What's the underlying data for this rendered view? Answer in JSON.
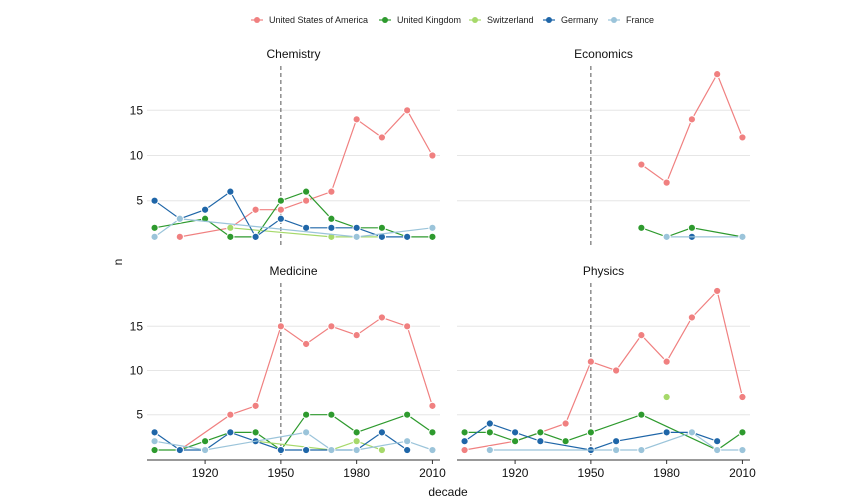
{
  "chart_data": {
    "type": "line",
    "xlabel": "decade",
    "ylabel": "n",
    "x_ticks": [
      1920,
      1950,
      1980,
      2010
    ],
    "y_ticks": [
      5,
      10,
      15
    ],
    "xlim": [
      1897,
      2013
    ],
    "ylim": [
      0.1,
      19.9
    ],
    "reference_line_x": 1950,
    "grid": "horizontal",
    "legend_position": "top",
    "series_colors": {
      "United States of America": "#F08080",
      "United Kingdom": "#2E9A2E",
      "Switzerland": "#A6D96A",
      "Germany": "#1F66A8",
      "France": "#9BC4DA"
    },
    "legend": [
      "United States of America",
      "United Kingdom",
      "Switzerland",
      "Germany",
      "France"
    ],
    "facets": [
      {
        "title": "Chemistry",
        "series": [
          {
            "name": "United States of America",
            "points": [
              [
                1910,
                1
              ],
              [
                1930,
                2
              ],
              [
                1940,
                4
              ],
              [
                1950,
                4
              ],
              [
                1960,
                5
              ],
              [
                1970,
                6
              ],
              [
                1980,
                14
              ],
              [
                1990,
                12
              ],
              [
                2000,
                15
              ],
              [
                2010,
                10
              ]
            ]
          },
          {
            "name": "United Kingdom",
            "points": [
              [
                1900,
                2
              ],
              [
                1920,
                3
              ],
              [
                1930,
                1
              ],
              [
                1940,
                1
              ],
              [
                1950,
                5
              ],
              [
                1960,
                6
              ],
              [
                1970,
                3
              ],
              [
                1980,
                2
              ],
              [
                1990,
                2
              ],
              [
                2000,
                1
              ],
              [
                2010,
                1
              ]
            ]
          },
          {
            "name": "Switzerland",
            "points": [
              [
                1930,
                2
              ],
              [
                1970,
                1
              ],
              [
                1990,
                1
              ]
            ]
          },
          {
            "name": "Germany",
            "points": [
              [
                1900,
                5
              ],
              [
                1910,
                3
              ],
              [
                1920,
                4
              ],
              [
                1930,
                6
              ],
              [
                1940,
                1
              ],
              [
                1950,
                3
              ],
              [
                1960,
                2
              ],
              [
                1970,
                2
              ],
              [
                1980,
                2
              ],
              [
                1990,
                1
              ],
              [
                2000,
                1
              ]
            ]
          },
          {
            "name": "France",
            "points": [
              [
                1900,
                1
              ],
              [
                1910,
                3
              ],
              [
                1980,
                1
              ],
              [
                2010,
                2
              ]
            ]
          }
        ]
      },
      {
        "title": "Economics",
        "series": [
          {
            "name": "United States of America",
            "points": [
              [
                1970,
                9
              ],
              [
                1980,
                7
              ],
              [
                1990,
                14
              ],
              [
                2000,
                19
              ],
              [
                2010,
                12
              ]
            ]
          },
          {
            "name": "United Kingdom",
            "points": [
              [
                1970,
                2
              ],
              [
                1980,
                1
              ],
              [
                1990,
                2
              ],
              [
                2010,
                1
              ]
            ]
          },
          {
            "name": "Germany",
            "points": [
              [
                1990,
                1
              ]
            ]
          },
          {
            "name": "France",
            "points": [
              [
                1980,
                1
              ],
              [
                2010,
                1
              ]
            ]
          }
        ]
      },
      {
        "title": "Medicine",
        "series": [
          {
            "name": "United States of America",
            "points": [
              [
                1910,
                1
              ],
              [
                1930,
                5
              ],
              [
                1940,
                6
              ],
              [
                1950,
                15
              ],
              [
                1960,
                13
              ],
              [
                1970,
                15
              ],
              [
                1980,
                14
              ],
              [
                1990,
                16
              ],
              [
                2000,
                15
              ],
              [
                2010,
                6
              ]
            ]
          },
          {
            "name": "United Kingdom",
            "points": [
              [
                1900,
                1
              ],
              [
                1910,
                1
              ],
              [
                1920,
                2
              ],
              [
                1930,
                3
              ],
              [
                1940,
                3
              ],
              [
                1950,
                1
              ],
              [
                1960,
                5
              ],
              [
                1970,
                5
              ],
              [
                1980,
                3
              ],
              [
                2000,
                5
              ],
              [
                2010,
                3
              ]
            ]
          },
          {
            "name": "Switzerland",
            "points": [
              [
                1940,
                2
              ],
              [
                1970,
                1
              ],
              [
                1980,
                2
              ],
              [
                1990,
                1
              ]
            ]
          },
          {
            "name": "Germany",
            "points": [
              [
                1900,
                3
              ],
              [
                1910,
                1
              ],
              [
                1920,
                1
              ],
              [
                1930,
                3
              ],
              [
                1940,
                2
              ],
              [
                1950,
                1
              ],
              [
                1960,
                1
              ],
              [
                1980,
                1
              ],
              [
                1990,
                3
              ],
              [
                2000,
                1
              ]
            ]
          },
          {
            "name": "France",
            "points": [
              [
                1900,
                2
              ],
              [
                1920,
                1
              ],
              [
                1960,
                3
              ],
              [
                1970,
                1
              ],
              [
                1980,
                1
              ],
              [
                2000,
                2
              ],
              [
                2010,
                1
              ]
            ]
          }
        ]
      },
      {
        "title": "Physics",
        "series": [
          {
            "name": "United States of America",
            "points": [
              [
                1900,
                1
              ],
              [
                1920,
                2
              ],
              [
                1930,
                3
              ],
              [
                1940,
                4
              ],
              [
                1950,
                11
              ],
              [
                1960,
                10
              ],
              [
                1970,
                14
              ],
              [
                1980,
                11
              ],
              [
                1990,
                16
              ],
              [
                2000,
                19
              ],
              [
                2010,
                7
              ]
            ]
          },
          {
            "name": "United Kingdom",
            "points": [
              [
                1900,
                3
              ],
              [
                1910,
                3
              ],
              [
                1920,
                2
              ],
              [
                1930,
                3
              ],
              [
                1940,
                2
              ],
              [
                1950,
                3
              ],
              [
                1970,
                5
              ],
              [
                2000,
                1
              ],
              [
                2010,
                3
              ]
            ]
          },
          {
            "name": "Switzerland",
            "points": [
              [
                1980,
                7
              ]
            ]
          },
          {
            "name": "Germany",
            "points": [
              [
                1900,
                2
              ],
              [
                1910,
                4
              ],
              [
                1920,
                3
              ],
              [
                1930,
                2
              ],
              [
                1950,
                1
              ],
              [
                1960,
                2
              ],
              [
                1980,
                3
              ],
              [
                1990,
                3
              ],
              [
                2000,
                2
              ]
            ]
          },
          {
            "name": "France",
            "points": [
              [
                1910,
                1
              ],
              [
                1960,
                1
              ],
              [
                1970,
                1
              ],
              [
                1990,
                3
              ],
              [
                2000,
                1
              ],
              [
                2010,
                1
              ]
            ]
          }
        ]
      }
    ]
  }
}
